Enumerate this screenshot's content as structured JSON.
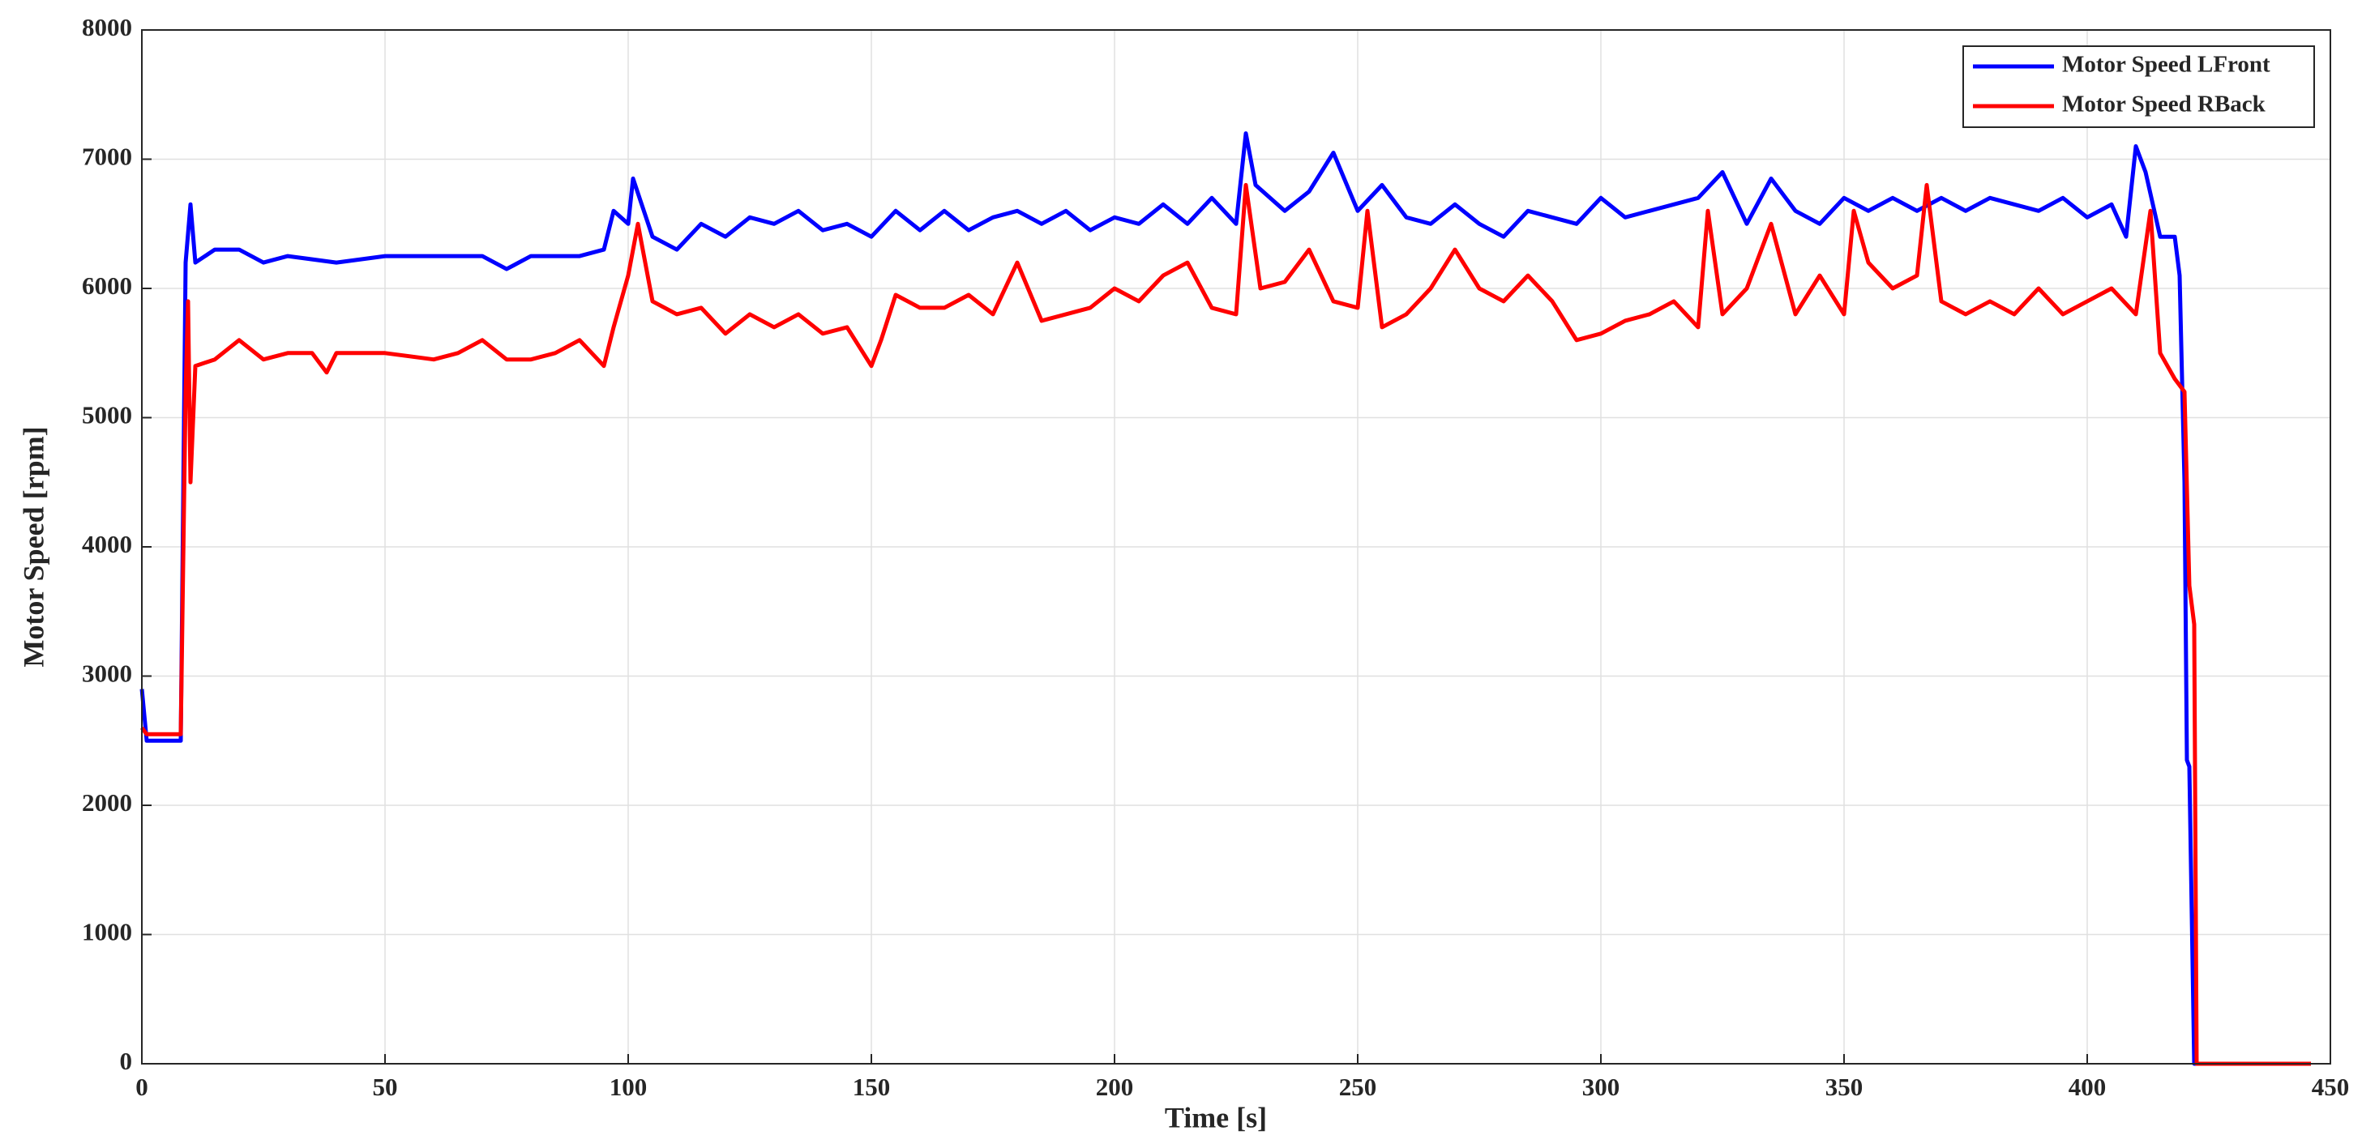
{
  "chart_data": {
    "type": "line",
    "xlabel": "Time [s]",
    "ylabel": "Motor Speed [rpm]",
    "xlim": [
      0,
      450
    ],
    "ylim": [
      0,
      8000
    ],
    "xticks": [
      0,
      50,
      100,
      150,
      200,
      250,
      300,
      350,
      400,
      450
    ],
    "yticks": [
      0,
      1000,
      2000,
      3000,
      4000,
      5000,
      6000,
      7000,
      8000
    ],
    "grid": true,
    "legend": "upper right",
    "series": [
      {
        "name": "Motor Speed LFront",
        "color": "#0000ff",
        "x": [
          0,
          1,
          8,
          9,
          10,
          11,
          15,
          20,
          25,
          30,
          40,
          50,
          60,
          70,
          75,
          80,
          90,
          95,
          97,
          100,
          101,
          105,
          110,
          115,
          120,
          125,
          130,
          135,
          140,
          145,
          150,
          155,
          160,
          165,
          170,
          175,
          180,
          185,
          190,
          195,
          200,
          205,
          210,
          215,
          220,
          225,
          227,
          229,
          235,
          240,
          245,
          250,
          255,
          260,
          265,
          270,
          275,
          280,
          285,
          290,
          295,
          300,
          305,
          310,
          315,
          320,
          325,
          330,
          335,
          340,
          345,
          350,
          355,
          360,
          365,
          370,
          375,
          380,
          385,
          390,
          395,
          400,
          405,
          408,
          410,
          412,
          415,
          418,
          419,
          420,
          420.5,
          421,
          422,
          446
        ],
        "values": [
          2900,
          2500,
          2500,
          6200,
          6650,
          6200,
          6300,
          6300,
          6200,
          6250,
          6200,
          6250,
          6250,
          6250,
          6150,
          6250,
          6250,
          6300,
          6600,
          6500,
          6850,
          6400,
          6300,
          6500,
          6400,
          6550,
          6500,
          6600,
          6450,
          6500,
          6400,
          6600,
          6450,
          6600,
          6450,
          6550,
          6600,
          6500,
          6600,
          6450,
          6550,
          6500,
          6650,
          6500,
          6700,
          6500,
          7200,
          6800,
          6600,
          6750,
          7050,
          6600,
          6800,
          6550,
          6500,
          6650,
          6500,
          6400,
          6600,
          6550,
          6500,
          6700,
          6550,
          6600,
          6650,
          6700,
          6900,
          6500,
          6850,
          6600,
          6500,
          6700,
          6600,
          6700,
          6600,
          6700,
          6600,
          6700,
          6650,
          6600,
          6700,
          6550,
          6650,
          6400,
          7100,
          6900,
          6400,
          6400,
          6100,
          4500,
          2350,
          2300,
          0,
          0
        ]
      },
      {
        "name": "Motor Speed RBack",
        "color": "#ff0000",
        "x": [
          0,
          1,
          8,
          9,
          9.5,
          10,
          11,
          15,
          20,
          25,
          30,
          35,
          38,
          40,
          50,
          60,
          65,
          70,
          75,
          80,
          85,
          90,
          95,
          97,
          100,
          102,
          105,
          110,
          115,
          120,
          125,
          130,
          135,
          140,
          145,
          150,
          152,
          155,
          160,
          165,
          170,
          175,
          180,
          185,
          190,
          195,
          200,
          205,
          210,
          215,
          220,
          225,
          227,
          230,
          235,
          240,
          245,
          250,
          252,
          255,
          260,
          265,
          270,
          275,
          280,
          285,
          290,
          295,
          300,
          305,
          310,
          315,
          320,
          322,
          325,
          330,
          335,
          340,
          345,
          350,
          352,
          355,
          360,
          365,
          367,
          370,
          375,
          380,
          385,
          390,
          395,
          400,
          405,
          410,
          413,
          415,
          418,
          420,
          421,
          422,
          422.5,
          446
        ],
        "values": [
          2600,
          2550,
          2550,
          5200,
          5900,
          4500,
          5400,
          5450,
          5600,
          5450,
          5500,
          5500,
          5350,
          5500,
          5500,
          5450,
          5500,
          5600,
          5450,
          5450,
          5500,
          5600,
          5400,
          5700,
          6100,
          6500,
          5900,
          5800,
          5850,
          5650,
          5800,
          5700,
          5800,
          5650,
          5700,
          5400,
          5600,
          5950,
          5850,
          5850,
          5950,
          5800,
          6200,
          5750,
          5800,
          5850,
          6000,
          5900,
          6100,
          6200,
          5850,
          5800,
          6800,
          6000,
          6050,
          6300,
          5900,
          5850,
          6600,
          5700,
          5800,
          6000,
          6300,
          6000,
          5900,
          6100,
          5900,
          5600,
          5650,
          5750,
          5800,
          5900,
          5700,
          6600,
          5800,
          6000,
          6500,
          5800,
          6100,
          5800,
          6600,
          6200,
          6000,
          6100,
          6800,
          5900,
          5800,
          5900,
          5800,
          6000,
          5800,
          5900,
          6000,
          5800,
          6600,
          5500,
          5300,
          5200,
          3700,
          3400,
          0,
          0
        ]
      }
    ]
  }
}
